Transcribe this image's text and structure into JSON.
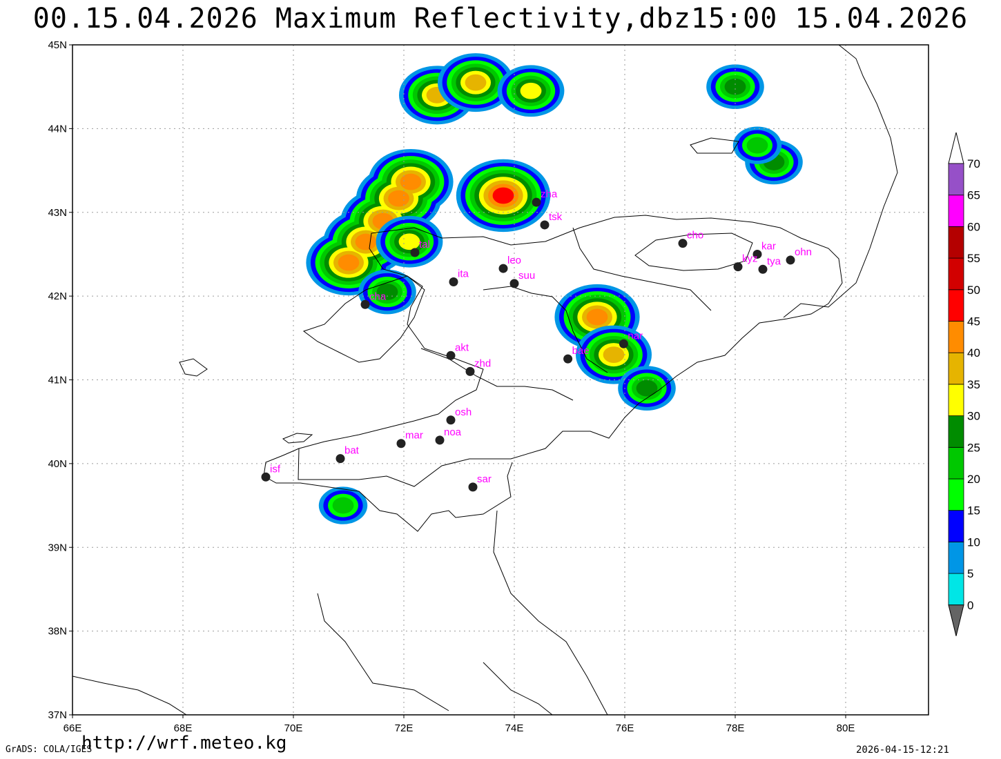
{
  "title": "00.15.04.2026 Maximum Reflectivity,dbz15:00 15.04.2026",
  "footer": {
    "url": "http://wrf.meteo.kg",
    "credit": "GrADS: COLA/IGES",
    "timestamp": "2026-04-15-12:21"
  },
  "map": {
    "lon_range": [
      66,
      81.5
    ],
    "lat_range": [
      37,
      45
    ],
    "lon_ticks": [
      "66E",
      "68E",
      "70E",
      "72E",
      "74E",
      "76E",
      "78E",
      "80E"
    ],
    "lat_ticks": [
      "37N",
      "38N",
      "39N",
      "40N",
      "41N",
      "42N",
      "43N",
      "44N",
      "45N"
    ],
    "grid": true
  },
  "stations": [
    {
      "code": "zha",
      "lon": 74.4,
      "lat": 43.12
    },
    {
      "code": "tsk",
      "lon": 74.55,
      "lat": 42.85
    },
    {
      "code": "tal",
      "lon": 72.2,
      "lat": 42.52
    },
    {
      "code": "leo",
      "lon": 73.8,
      "lat": 42.33
    },
    {
      "code": "ita",
      "lon": 72.9,
      "lat": 42.17
    },
    {
      "code": "suu",
      "lon": 74.0,
      "lat": 42.15
    },
    {
      "code": "cha",
      "lon": 71.3,
      "lat": 41.9
    },
    {
      "code": "cho",
      "lon": 77.05,
      "lat": 42.63
    },
    {
      "code": "kar",
      "lon": 78.4,
      "lat": 42.5
    },
    {
      "code": "kyz",
      "lon": 78.05,
      "lat": 42.35
    },
    {
      "code": "tya",
      "lon": 78.5,
      "lat": 42.32
    },
    {
      "code": "ohn",
      "lon": 79.0,
      "lat": 42.43
    },
    {
      "code": "nar",
      "lon": 75.98,
      "lat": 41.43
    },
    {
      "code": "bae",
      "lon": 74.97,
      "lat": 41.25
    },
    {
      "code": "akt",
      "lon": 72.85,
      "lat": 41.29
    },
    {
      "code": "zhd",
      "lon": 73.2,
      "lat": 41.1
    },
    {
      "code": "osh",
      "lon": 72.85,
      "lat": 40.52
    },
    {
      "code": "mar",
      "lon": 71.95,
      "lat": 40.24
    },
    {
      "code": "noa",
      "lon": 72.65,
      "lat": 40.28
    },
    {
      "code": "bat",
      "lon": 70.85,
      "lat": 40.06
    },
    {
      "code": "isf",
      "lon": 69.5,
      "lat": 39.84
    },
    {
      "code": "sar",
      "lon": 73.25,
      "lat": 39.72
    }
  ],
  "colorbar": {
    "labels": [
      "0",
      "5",
      "10",
      "15",
      "20",
      "25",
      "30",
      "35",
      "40",
      "45",
      "50",
      "55",
      "60",
      "65",
      "70"
    ],
    "colors": [
      "#00e6e6",
      "#0096e6",
      "#0000ff",
      "#00ff00",
      "#00c800",
      "#008c00",
      "#ffff00",
      "#e6b400",
      "#ff8c00",
      "#ff0000",
      "#d20000",
      "#b40000",
      "#ff00ff",
      "#9650c8"
    ],
    "under_color": "#646464",
    "over_color": "#ffffff"
  },
  "echoes": [
    {
      "lon": 71.0,
      "lat": 42.4,
      "dbz": 40,
      "shape": [
        [
          0,
          0
        ],
        [
          1,
          1
        ],
        [
          2,
          2
        ],
        [
          2.9,
          3.1
        ],
        [
          3.6,
          3.9
        ]
      ]
    },
    {
      "lon": 72.6,
      "lat": 44.4,
      "dbz": 35
    },
    {
      "lon": 73.8,
      "lat": 43.2,
      "dbz": 45
    },
    {
      "lon": 73.3,
      "lat": 44.55,
      "dbz": 35
    },
    {
      "lon": 74.3,
      "lat": 44.45,
      "dbz": 30
    },
    {
      "lon": 75.5,
      "lat": 41.75,
      "dbz": 40
    },
    {
      "lon": 75.8,
      "lat": 41.3,
      "dbz": 35
    },
    {
      "lon": 76.4,
      "lat": 40.9,
      "dbz": 25
    },
    {
      "lon": 71.7,
      "lat": 42.05,
      "dbz": 25
    },
    {
      "lon": 70.9,
      "lat": 39.5,
      "dbz": 20
    },
    {
      "lon": 72.1,
      "lat": 42.65,
      "dbz": 30
    },
    {
      "lon": 78.0,
      "lat": 44.5,
      "dbz": 25
    },
    {
      "lon": 78.7,
      "lat": 43.6,
      "dbz": 25
    },
    {
      "lon": 78.4,
      "lat": 43.8,
      "dbz": 20
    }
  ]
}
